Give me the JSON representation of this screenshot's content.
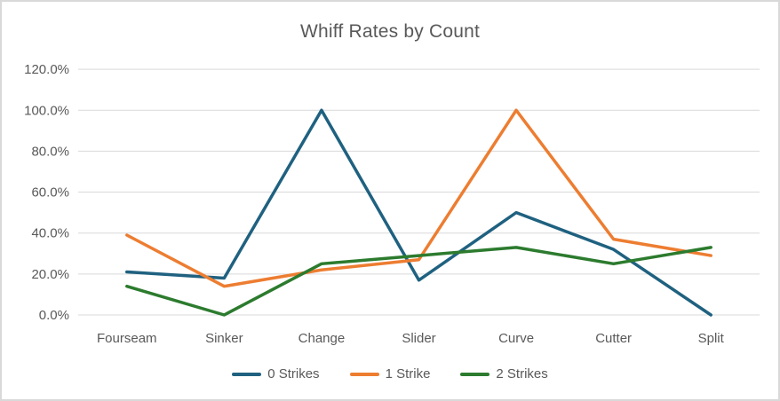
{
  "chart_data": {
    "type": "line",
    "title": "Whiff Rates by Count",
    "categories": [
      "Fourseam",
      "Sinker",
      "Change",
      "Slider",
      "Curve",
      "Cutter",
      "Split"
    ],
    "series": [
      {
        "name": "0 Strikes",
        "color": "#1F6180",
        "values": [
          21,
          18,
          100,
          17,
          50,
          32,
          0
        ]
      },
      {
        "name": "1 Strike",
        "color": "#ED7D31",
        "values": [
          39,
          14,
          22,
          27,
          100,
          37,
          29
        ]
      },
      {
        "name": "2 Strikes",
        "color": "#2C7B2E",
        "values": [
          14,
          0,
          25,
          29,
          33,
          25,
          33
        ]
      }
    ],
    "xlabel": "",
    "ylabel": "",
    "ylim": [
      0,
      120
    ],
    "y_ticks": {
      "values": [
        0,
        20,
        40,
        60,
        80,
        100,
        120
      ],
      "labels": [
        "0.0%",
        "20.0%",
        "40.0%",
        "60.0%",
        "80.0%",
        "100.0%",
        "120.0%"
      ]
    },
    "grid": "horizontal",
    "legend_position": "bottom"
  },
  "colors": {
    "background": "#FFFFFF",
    "border": "#D9D9D9",
    "gridline": "#D9D9D9",
    "text": "#595959"
  }
}
